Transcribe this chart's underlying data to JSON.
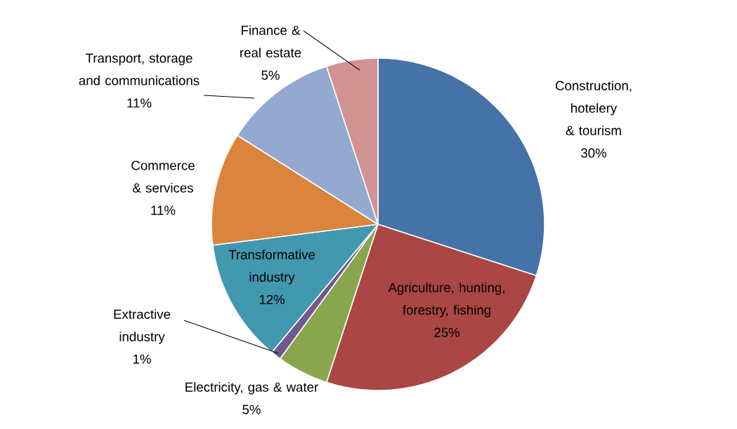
{
  "chart_data": {
    "type": "pie",
    "categories": [
      "Construction, hotelery & tourism",
      "Agriculture, hunting, forestry, fishing",
      "Electricity, gas & water",
      "Extractive industry",
      "Transformative industry",
      "Commerce & services",
      "Transport, storage and communications",
      "Finance & real estate"
    ],
    "values": [
      30,
      25,
      5,
      1,
      12,
      11,
      11,
      5
    ],
    "value_labels": [
      "30%",
      "25%",
      "5%",
      "1%",
      "12%",
      "11%",
      "11%",
      "5%"
    ],
    "colors": [
      "#4572a7",
      "#aa4643",
      "#89a54e",
      "#71588f",
      "#4198af",
      "#db843d",
      "#93a9cf",
      "#d19392"
    ]
  }
}
